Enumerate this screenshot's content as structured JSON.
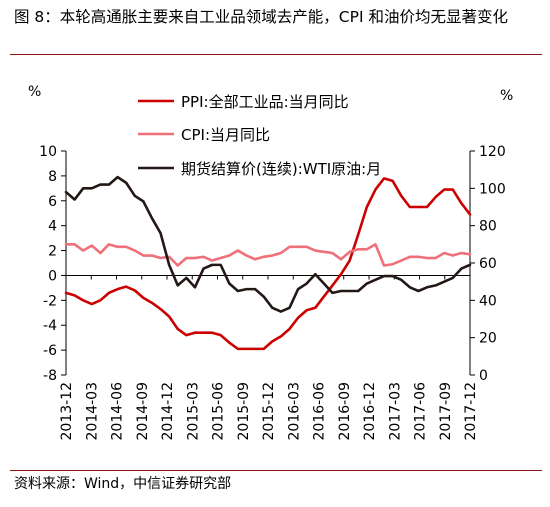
{
  "title": "图 8：本轮高通胀主要来自工业品领域去产能，CPI 和油价均无显著变化",
  "source": "资料来源：Wind，中信证券研究部",
  "chart_data": {
    "type": "line",
    "left_unit": "%",
    "right_unit": "%",
    "y_left": {
      "min": -8,
      "max": 10,
      "ticks": [
        10,
        8,
        6,
        4,
        2,
        0,
        -2,
        -4,
        -6,
        -8
      ]
    },
    "y_right": {
      "min": 0,
      "max": 120,
      "ticks": [
        120,
        100,
        80,
        60,
        40,
        20,
        0
      ]
    },
    "x_ticks": [
      "2013-12",
      "2014-03",
      "2014-06",
      "2014-09",
      "2014-12",
      "2015-03",
      "2015-06",
      "2015-09",
      "2015-12",
      "2016-03",
      "2016-06",
      "2016-09",
      "2016-12",
      "2017-03",
      "2017-06",
      "2017-09",
      "2017-12"
    ],
    "colors": {
      "ppi": "#cc0000",
      "cpi": "#f0707a",
      "wti": "#231815"
    },
    "series": [
      {
        "name": "PPI:全部工业品:当月同比",
        "axis": "left",
        "values": [
          -1.4,
          -1.6,
          -2.0,
          -2.3,
          -2.0,
          -1.4,
          -1.1,
          -0.9,
          -1.2,
          -1.8,
          -2.2,
          -2.7,
          -3.3,
          -4.3,
          -4.8,
          -4.6,
          -4.6,
          -4.6,
          -4.8,
          -5.4,
          -5.9,
          -5.9,
          -5.9,
          -5.9,
          -5.3,
          -4.9,
          -4.3,
          -3.4,
          -2.8,
          -2.6,
          -1.7,
          -0.8,
          0.1,
          1.2,
          3.3,
          5.5,
          6.9,
          7.8,
          7.6,
          6.4,
          5.5,
          5.5,
          5.5,
          6.3,
          6.9,
          6.9,
          5.8,
          4.9
        ]
      },
      {
        "name": "CPI:当月同比",
        "axis": "left",
        "values": [
          2.5,
          2.5,
          2.0,
          2.4,
          1.8,
          2.5,
          2.3,
          2.3,
          2.0,
          1.6,
          1.6,
          1.4,
          1.5,
          0.8,
          1.4,
          1.4,
          1.5,
          1.2,
          1.4,
          1.6,
          2.0,
          1.6,
          1.3,
          1.5,
          1.6,
          1.8,
          2.3,
          2.3,
          2.3,
          2.0,
          1.9,
          1.8,
          1.3,
          1.9,
          2.1,
          2.1,
          2.5,
          0.8,
          0.9,
          1.2,
          1.5,
          1.5,
          1.4,
          1.4,
          1.8,
          1.6,
          1.8,
          1.7
        ]
      },
      {
        "name": "期货结算价(连续):WTI原油:月",
        "axis": "right",
        "values": [
          98,
          94,
          100,
          100,
          102,
          102,
          106,
          103,
          96,
          93,
          84,
          76,
          59,
          48,
          52,
          47,
          57,
          59,
          59,
          49,
          45,
          46,
          46,
          42,
          36,
          34,
          36,
          46,
          49,
          54,
          49,
          44,
          45,
          45,
          45,
          49,
          51,
          53,
          53,
          51,
          47,
          45,
          47,
          48,
          50,
          52,
          57,
          59
        ]
      }
    ]
  }
}
